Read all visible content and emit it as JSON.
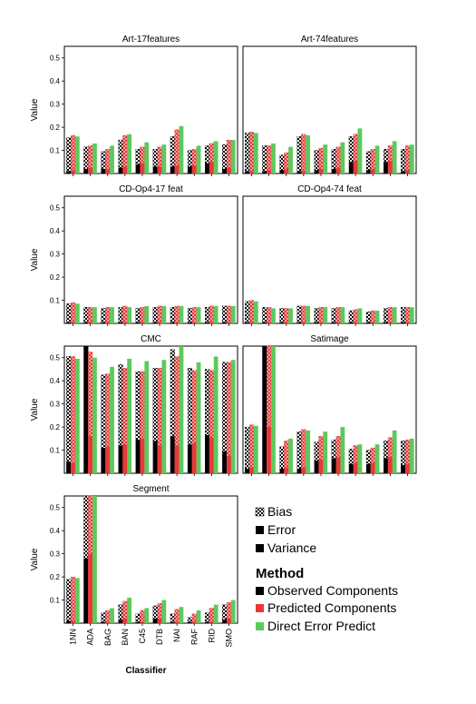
{
  "legend": {
    "components_title": "",
    "components": [
      "Bias",
      "Error",
      "Variance"
    ],
    "method_title": "Method",
    "methods": [
      "Observed Components",
      "Predicted Components",
      "Direct Error Predict"
    ]
  },
  "axes": {
    "ylabel": "Value",
    "xlabel": "Classifier"
  },
  "colors": {
    "observed": "#000000",
    "predicted": "#e8393a",
    "direct": "#5dc95d",
    "frame": "#000000"
  },
  "chart_data": {
    "type": "bar",
    "categories": [
      "1NN",
      "ADA",
      "BAG",
      "BAN",
      "C45",
      "DTB",
      "NAI",
      "RAF",
      "RID",
      "SMO"
    ],
    "category_labels": [
      "1NN",
      "ADA",
      "BAG",
      "BAN",
      "C45",
      "DTB",
      "NAI",
      "RAF",
      "RID",
      "SMO"
    ],
    "ylim": [
      0,
      0.55
    ],
    "yticks": [
      "0.1",
      "0.2",
      "0.3",
      "0.4",
      "0.5"
    ],
    "series_order": [
      "Observed Components",
      "Predicted Components",
      "Direct Error Predict"
    ],
    "panels": [
      {
        "title": "Art-17features",
        "observed": [
          0.155,
          0.115,
          0.095,
          0.145,
          0.105,
          0.105,
          0.16,
          0.1,
          0.12,
          0.125
        ],
        "predicted": [
          0.165,
          0.12,
          0.105,
          0.165,
          0.115,
          0.115,
          0.19,
          0.105,
          0.13,
          0.145
        ],
        "direct": [
          0.16,
          0.13,
          0.12,
          0.17,
          0.135,
          0.125,
          0.205,
          0.12,
          0.14,
          0.145
        ],
        "error": [
          0.01,
          0.02,
          0.02,
          0.025,
          0.04,
          0.03,
          0.03,
          0.03,
          0.045,
          0.02
        ],
        "predicted_error": [
          0.015,
          0.025,
          0.02,
          0.03,
          0.045,
          0.03,
          0.035,
          0.035,
          0.05,
          0.025
        ]
      },
      {
        "title": "Art-74features",
        "observed": [
          0.175,
          0.12,
          0.08,
          0.16,
          0.1,
          0.105,
          0.16,
          0.095,
          0.105,
          0.105
        ],
        "predicted": [
          0.18,
          0.12,
          0.09,
          0.17,
          0.11,
          0.115,
          0.17,
          0.105,
          0.12,
          0.12
        ],
        "direct": [
          0.175,
          0.13,
          0.115,
          0.165,
          0.125,
          0.135,
          0.195,
          0.12,
          0.14,
          0.125
        ],
        "error": [
          0.01,
          0.01,
          0.015,
          0.01,
          0.015,
          0.02,
          0.05,
          0.015,
          0.05,
          0.01
        ],
        "predicted_error": [
          0.01,
          0.015,
          0.02,
          0.01,
          0.02,
          0.025,
          0.055,
          0.02,
          0.055,
          0.015
        ]
      },
      {
        "title": "CD-Op4-17 feat",
        "observed": [
          0.085,
          0.07,
          0.065,
          0.07,
          0.065,
          0.07,
          0.07,
          0.065,
          0.07,
          0.075
        ],
        "predicted": [
          0.09,
          0.07,
          0.07,
          0.075,
          0.07,
          0.075,
          0.075,
          0.07,
          0.075,
          0.075
        ],
        "direct": [
          0.085,
          0.07,
          0.07,
          0.07,
          0.075,
          0.075,
          0.075,
          0.07,
          0.075,
          0.075
        ],
        "error": [
          0.005,
          0.005,
          0.005,
          0.005,
          0.005,
          0.005,
          0.005,
          0.005,
          0.005,
          0.005
        ],
        "predicted_error": [
          0.005,
          0.005,
          0.005,
          0.005,
          0.005,
          0.005,
          0.005,
          0.005,
          0.005,
          0.005
        ]
      },
      {
        "title": "CD-Op4-74 feat",
        "observed": [
          0.095,
          0.07,
          0.065,
          0.075,
          0.065,
          0.065,
          0.055,
          0.05,
          0.065,
          0.07
        ],
        "predicted": [
          0.1,
          0.07,
          0.065,
          0.075,
          0.07,
          0.07,
          0.06,
          0.055,
          0.07,
          0.07
        ],
        "direct": [
          0.095,
          0.065,
          0.065,
          0.075,
          0.07,
          0.07,
          0.065,
          0.055,
          0.07,
          0.07
        ],
        "error": [
          0.005,
          0.005,
          0.005,
          0.005,
          0.005,
          0.005,
          0.005,
          0.005,
          0.005,
          0.005
        ],
        "predicted_error": [
          0.005,
          0.005,
          0.005,
          0.005,
          0.005,
          0.005,
          0.005,
          0.005,
          0.005,
          0.005
        ]
      },
      {
        "title": "CMC",
        "observed": [
          0.505,
          0.55,
          0.425,
          0.47,
          0.44,
          0.455,
          0.535,
          0.455,
          0.45,
          0.48
        ],
        "predicted": [
          0.505,
          0.525,
          0.43,
          0.455,
          0.44,
          0.455,
          0.505,
          0.445,
          0.445,
          0.48
        ],
        "direct": [
          0.495,
          0.5,
          0.46,
          0.495,
          0.485,
          0.49,
          0.55,
          0.48,
          0.505,
          0.49
        ],
        "error": [
          0.05,
          0.55,
          0.11,
          0.12,
          0.145,
          0.14,
          0.16,
          0.125,
          0.165,
          0.095
        ],
        "predicted_error": [
          0.045,
          0.16,
          0.115,
          0.125,
          0.15,
          0.12,
          0.12,
          0.13,
          0.155,
          0.075
        ]
      },
      {
        "title": "Satimage",
        "observed": [
          0.2,
          0.55,
          0.115,
          0.18,
          0.135,
          0.145,
          0.105,
          0.1,
          0.14,
          0.14
        ],
        "predicted": [
          0.21,
          0.55,
          0.14,
          0.19,
          0.16,
          0.16,
          0.12,
          0.11,
          0.155,
          0.145
        ],
        "direct": [
          0.205,
          0.55,
          0.15,
          0.185,
          0.18,
          0.2,
          0.125,
          0.125,
          0.185,
          0.15
        ],
        "error": [
          0.02,
          0.55,
          0.02,
          0.02,
          0.055,
          0.065,
          0.04,
          0.04,
          0.065,
          0.035
        ],
        "predicted_error": [
          0.025,
          0.2,
          0.025,
          0.025,
          0.06,
          0.07,
          0.045,
          0.045,
          0.07,
          0.04
        ]
      },
      {
        "title": "Segment",
        "observed": [
          0.19,
          0.55,
          0.045,
          0.08,
          0.04,
          0.075,
          0.04,
          0.025,
          0.045,
          0.08
        ],
        "predicted": [
          0.2,
          0.55,
          0.055,
          0.095,
          0.055,
          0.085,
          0.06,
          0.04,
          0.065,
          0.09
        ],
        "direct": [
          0.195,
          0.55,
          0.065,
          0.11,
          0.065,
          0.1,
          0.07,
          0.055,
          0.08,
          0.1
        ],
        "error": [
          0.01,
          0.28,
          0.005,
          0.015,
          0.005,
          0.02,
          0.005,
          0.005,
          0.005,
          0.015
        ],
        "predicted_error": [
          0.01,
          0.3,
          0.005,
          0.02,
          0.005,
          0.02,
          0.005,
          0.005,
          0.005,
          0.02
        ]
      }
    ]
  }
}
